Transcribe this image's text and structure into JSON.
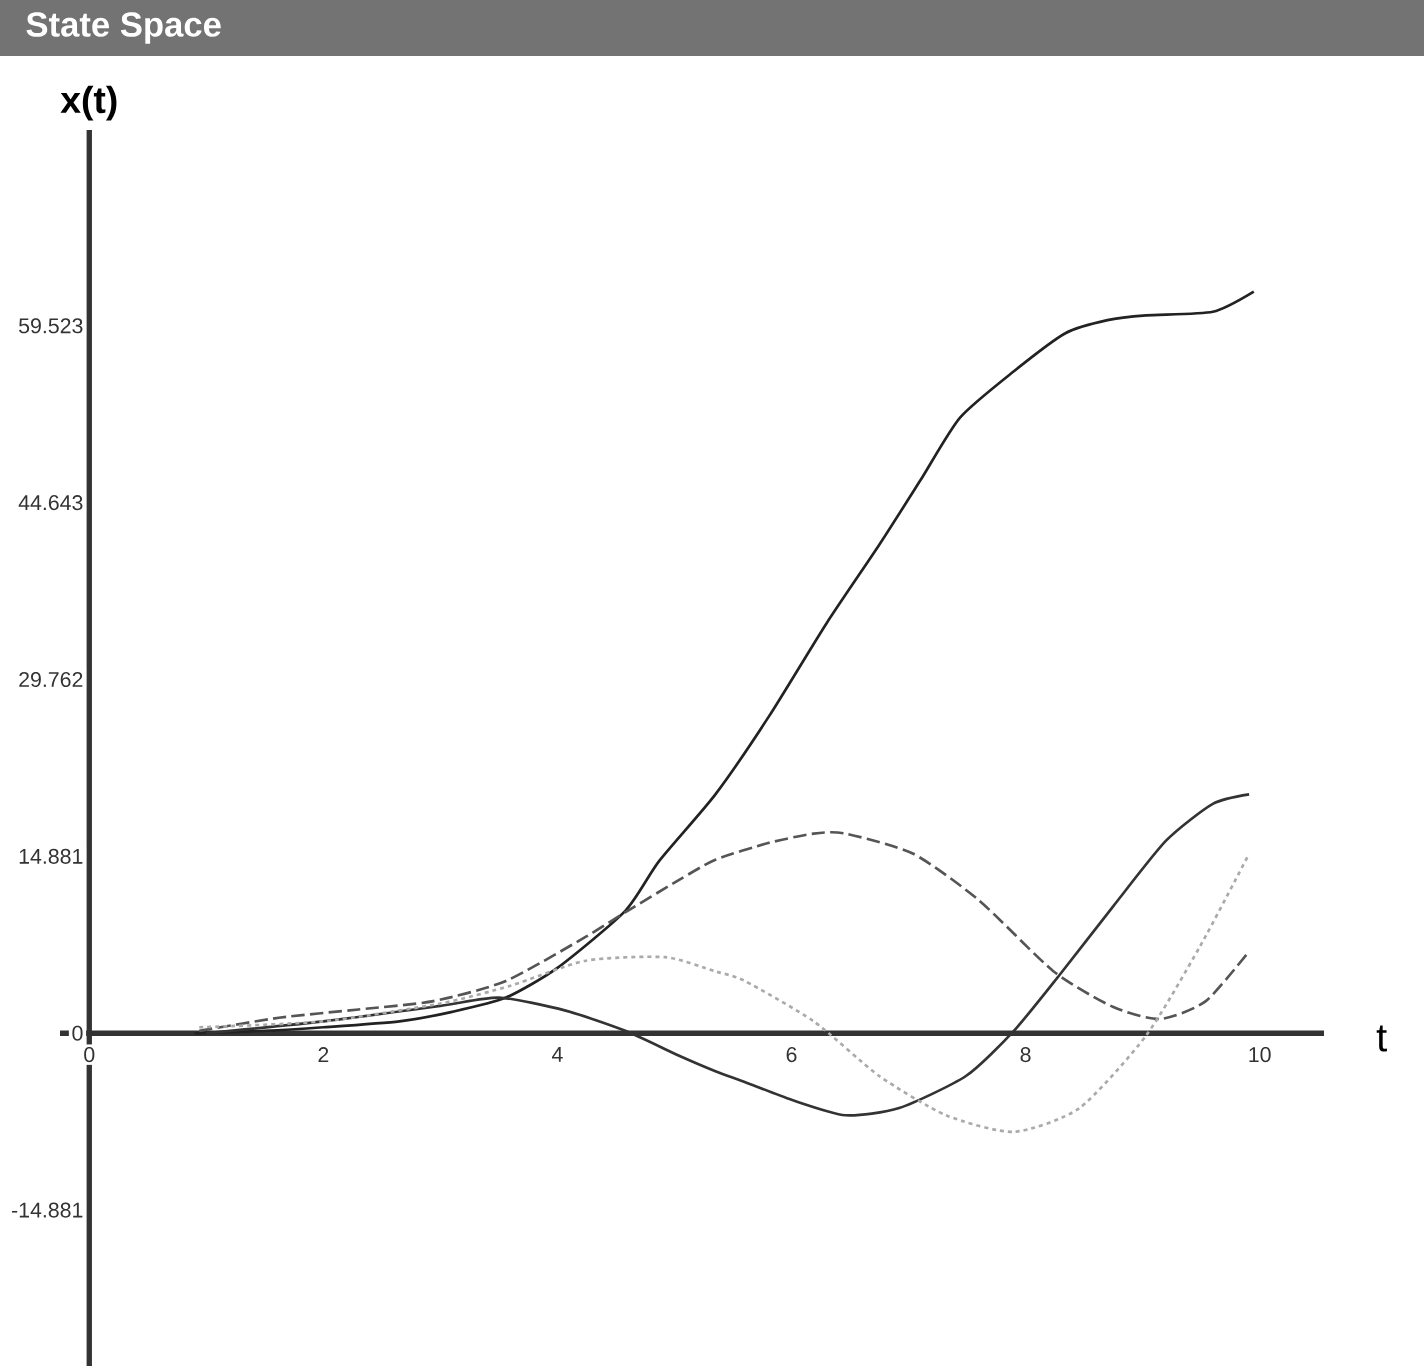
{
  "chart_data": {
    "type": "line",
    "title": "State Space",
    "xlabel": "t",
    "ylabel": "x(t)",
    "xlim": [
      -0.25,
      10.55
    ],
    "ylim": [
      -28,
      76
    ],
    "xticks": [
      0,
      2,
      4,
      6,
      8,
      10
    ],
    "yticks": [
      -14.881,
      0,
      14.881,
      29.762,
      44.643,
      59.523
    ],
    "grid": false,
    "marker": "none",
    "series": [
      {
        "color": "#222222",
        "line_style": "solid",
        "x": [
          0.9,
          1.5,
          2.0,
          2.65,
          3.1,
          3.56,
          4.0,
          4.58,
          4.87,
          5.35,
          5.81,
          6.3,
          6.75,
          7.1,
          7.44,
          7.9,
          8.34,
          8.7,
          9.03,
          9.6,
          9.95
        ],
        "values": [
          0,
          0.2,
          0.5,
          1,
          1.8,
          3.0,
          5.5,
          10.3,
          14.5,
          20.1,
          26.7,
          34.5,
          41.1,
          46.5,
          51.8,
          55.7,
          58.9,
          60.0,
          60.4,
          60.7,
          62.4
        ]
      },
      {
        "color": "#555555",
        "line_style": "dashed",
        "x": [
          0.94,
          1.62,
          2.3,
          2.94,
          3.56,
          4.24,
          4.6,
          5.04,
          5.35,
          5.8,
          6.19,
          6.46,
          7.04,
          7.6,
          8.24,
          8.75,
          9.15,
          9.54,
          9.91
        ],
        "values": [
          0.2,
          1.3,
          2.0,
          2.7,
          4.4,
          8.1,
          10.3,
          12.9,
          14.6,
          16.0,
          16.8,
          16.8,
          15.1,
          11.2,
          5.2,
          2.2,
          1.2,
          2.7,
          6.9
        ]
      },
      {
        "color": "#333333",
        "line_style": "solid",
        "x": [
          1.0,
          2.0,
          3.0,
          3.5,
          4.07,
          4.58,
          5.04,
          5.35,
          5.6,
          6.0,
          6.46,
          6.92,
          7.49,
          7.9,
          8.29,
          8.75,
          9.2,
          9.6,
          9.91
        ],
        "values": [
          0,
          1.0,
          2.3,
          3.0,
          1.9,
          0.2,
          -1.9,
          -3.2,
          -4.1,
          -5.6,
          -6.9,
          -6.3,
          -3.6,
          0.2,
          4.9,
          10.7,
          16.2,
          19.3,
          20.1
        ]
      },
      {
        "color": "#aaaaaa",
        "line_style": "dotted",
        "x": [
          0.94,
          2.0,
          3.0,
          3.6,
          4.24,
          4.92,
          5.35,
          5.6,
          6.19,
          6.75,
          7.32,
          7.9,
          8.46,
          9.03,
          9.49,
          9.91
        ],
        "values": [
          0.5,
          1.0,
          2.5,
          4.0,
          6.1,
          6.4,
          5.2,
          4.4,
          1.0,
          -3.6,
          -6.9,
          -8.3,
          -6.3,
          -0.2,
          7.3,
          15.1
        ]
      }
    ]
  }
}
